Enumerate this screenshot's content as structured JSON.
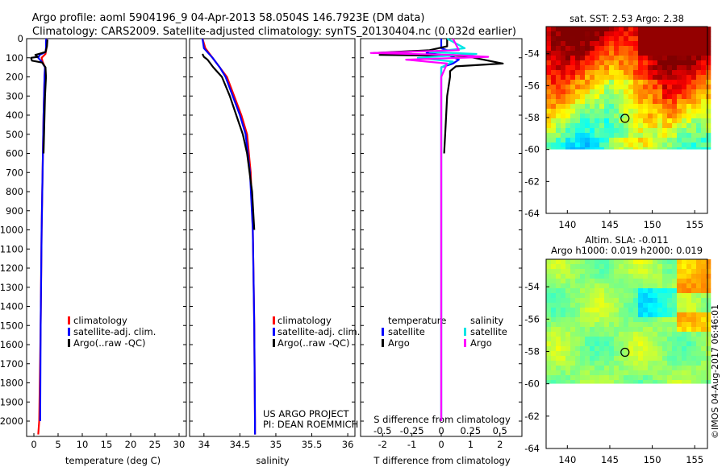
{
  "header": {
    "title_line1": "Argo profile: aoml 5904196_9 04-Apr-2013 58.0504S 146.7923E (DM data)",
    "title_line2": "Climatology: CARS2009. Satellite-adjusted climatology: synTS_20130404.nc (0.032d earlier)"
  },
  "credits": {
    "project": "US ARGO PROJECT",
    "pi": "PI: DEAN ROEMMICH",
    "stamp": "©IMOS 04-Aug-2017 06:46:01"
  },
  "colors": {
    "climatology": "#ff0000",
    "satellite": "#0000ff",
    "argo": "#000000",
    "sal_satellite": "#00e5e5",
    "sal_argo": "#ff00ff",
    "map_land_mask": "#ffffff"
  },
  "chart_data": [
    {
      "type": "line",
      "id": "temperature",
      "xlabel": "temperature (deg C)",
      "ylabel": "",
      "xlim": [
        -1.5,
        31.5
      ],
      "ylim": [
        2080,
        0
      ],
      "xticks": [
        "0",
        "5",
        "10",
        "15",
        "20",
        "25",
        "30"
      ],
      "xtick_values": [
        0,
        5,
        10,
        15,
        20,
        25,
        30
      ],
      "yticks": [
        "0",
        "100",
        "200",
        "300",
        "400",
        "500",
        "600",
        "700",
        "800",
        "900",
        "1000",
        "1100",
        "1200",
        "1300",
        "1400",
        "1500",
        "1600",
        "1700",
        "1800",
        "1900",
        "2000"
      ],
      "ytick_values": [
        0,
        100,
        200,
        300,
        400,
        500,
        600,
        700,
        800,
        900,
        1000,
        1100,
        1200,
        1300,
        1400,
        1500,
        1600,
        1700,
        1800,
        1900,
        2000
      ],
      "legend": [
        "climatology",
        "satellite-adj. clim.",
        "Argo(..raw -QC)"
      ],
      "legend_position": "lower-right",
      "series": [
        {
          "name": "climatology",
          "color": "#ff0000",
          "x": [
            2.6,
            2.6,
            2.4,
            1.6,
            1.8,
            2.3,
            2.2,
            2.0,
            1.8,
            1.6,
            1.4,
            1.1,
            0.9
          ],
          "y": [
            0,
            50,
            80,
            100,
            120,
            150,
            200,
            400,
            700,
            1000,
            1500,
            2000,
            2070
          ]
        },
        {
          "name": "satellite-adj. clim.",
          "color": "#0000ff",
          "x": [
            2.6,
            2.5,
            2.5,
            2.4,
            1.2,
            0.9,
            1.6,
            2.3,
            2.2,
            2.0,
            1.8,
            1.6,
            1.4,
            1.3
          ],
          "y": [
            0,
            10,
            50,
            70,
            85,
            100,
            120,
            150,
            200,
            400,
            700,
            1000,
            1500,
            2000
          ]
        },
        {
          "name": "Argo(..raw -QC)",
          "color": "#000000",
          "x": [
            2.8,
            2.7,
            2.4,
            1.0,
            0.3,
            0.8,
            -0.6,
            -0.4,
            1.7,
            2.4,
            2.5,
            2.3,
            2.2,
            2.0
          ],
          "y": [
            5,
            40,
            70,
            80,
            85,
            95,
            100,
            115,
            125,
            150,
            200,
            300,
            400,
            600
          ]
        }
      ]
    },
    {
      "type": "line",
      "id": "salinity",
      "xlabel": "salinity",
      "ylabel": "",
      "xlim": [
        33.8,
        36.1
      ],
      "ylim": [
        2080,
        0
      ],
      "xticks": [
        "34",
        "34.5",
        "35",
        "35.5",
        "36"
      ],
      "xtick_values": [
        34,
        34.5,
        35,
        35.5,
        36
      ],
      "legend": [
        "climatology",
        "satellite-adj. clim.",
        "Argo(..raw -QC)"
      ],
      "legend_position": "lower-right",
      "series": [
        {
          "name": "climatology",
          "color": "#ff0000",
          "x": [
            33.98,
            34.02,
            34.12,
            34.22,
            34.32,
            34.42,
            34.52,
            34.6,
            34.65,
            34.68,
            34.7,
            34.71,
            34.71
          ],
          "y": [
            0,
            50,
            100,
            150,
            200,
            300,
            400,
            500,
            700,
            1000,
            1500,
            2000,
            2070
          ]
        },
        {
          "name": "satellite-adj. clim.",
          "color": "#0000ff",
          "x": [
            33.98,
            34.0,
            34.12,
            34.22,
            34.3,
            34.4,
            34.5,
            34.58,
            34.64,
            34.68,
            34.7,
            34.71,
            34.71
          ],
          "y": [
            0,
            50,
            100,
            150,
            200,
            300,
            400,
            500,
            700,
            1000,
            1500,
            2000,
            2070
          ]
        },
        {
          "name": "Argo(..raw -QC)",
          "color": "#000000",
          "x": [
            33.98,
            34.0,
            34.05,
            34.13,
            34.25,
            34.36,
            34.45,
            34.54,
            34.6,
            34.67,
            34.7
          ],
          "y": [
            80,
            95,
            110,
            150,
            200,
            300,
            400,
            500,
            600,
            800,
            1000
          ]
        }
      ]
    },
    {
      "type": "line",
      "id": "differences",
      "xlabel": "T difference from climatology",
      "xlabel_top": "S difference from climatology",
      "xlim": [
        -2.75,
        2.75
      ],
      "ylim": [
        2080,
        0
      ],
      "xticks": [
        "-2",
        "-1",
        "0",
        "1",
        "2"
      ],
      "xtick_values": [
        -2,
        -1,
        0,
        1,
        2
      ],
      "xticks_top": [
        "-0.5",
        "-0.25",
        "0",
        "0.25",
        "0.5"
      ],
      "xtick_values_top": [
        -0.5,
        -0.25,
        0,
        0.25,
        0.5
      ],
      "legend_titles": [
        "temperature",
        "salinity"
      ],
      "legend": [
        "satellite",
        "Argo",
        "satellite",
        "Argo"
      ],
      "legend_position": "lower-center",
      "series": [
        {
          "name": "satellite",
          "group": "temperature",
          "color": "#0000ff",
          "x": [
            0,
            0,
            0.2,
            -0.5,
            0.3,
            0.6,
            0.4,
            0,
            0,
            0,
            0,
            0
          ],
          "y": [
            0,
            50,
            60,
            75,
            90,
            110,
            130,
            150,
            400,
            1000,
            1500,
            2000
          ]
        },
        {
          "name": "Argo",
          "group": "temperature",
          "color": "#000000",
          "x": [
            0.2,
            0.2,
            -0.4,
            -2.3,
            -1.0,
            -2.1,
            0.8,
            2.1,
            0.5,
            0.3,
            0.3,
            0.2,
            0.15,
            0.1
          ],
          "y": [
            0,
            40,
            60,
            75,
            80,
            85,
            90,
            130,
            145,
            170,
            200,
            300,
            450,
            600
          ]
        },
        {
          "name": "satellite",
          "group": "salinity",
          "color": "#00e5e5",
          "x": [
            0.05,
            0.2,
            0.05,
            -0.1,
            0.3,
            -0.2,
            0.1,
            0,
            0,
            0,
            0,
            0
          ],
          "y": [
            0,
            50,
            60,
            70,
            80,
            100,
            120,
            150,
            400,
            1000,
            1500,
            2000
          ]
        },
        {
          "name": "Argo",
          "group": "salinity",
          "color": "#ff00ff",
          "x": [
            0.1,
            0.15,
            -0.6,
            0.1,
            0.4,
            -0.3,
            0.05,
            0,
            0,
            0,
            0,
            0
          ],
          "y": [
            0,
            60,
            75,
            85,
            95,
            110,
            130,
            200,
            400,
            1000,
            1500,
            2000
          ]
        }
      ]
    },
    {
      "type": "heatmap",
      "id": "sst_map",
      "title": "sat. SST: 2.53 Argo: 2.38",
      "xlim": [
        137.5,
        156.5
      ],
      "ylim": [
        -64,
        -52.3
      ],
      "xticks": [
        "140",
        "145",
        "150",
        "155"
      ],
      "xtick_values": [
        140,
        145,
        150,
        155
      ],
      "yticks": [
        "-54",
        "-56",
        "-58",
        "-60",
        "-62",
        "-64"
      ],
      "ytick_values": [
        -54,
        -56,
        -58,
        -60,
        -62,
        -64
      ],
      "data_south_limit": -60,
      "argo_position": [
        146.79,
        -58.05
      ],
      "colormap": "jet"
    },
    {
      "type": "heatmap",
      "id": "sla_map",
      "title": "Altim. SLA: -0.011",
      "subtitle": "Argo h1000: 0.019 h2000: 0.019",
      "xlim": [
        137.5,
        156.5
      ],
      "ylim": [
        -64,
        -52.3
      ],
      "xticks": [
        "140",
        "145",
        "150",
        "155"
      ],
      "xtick_values": [
        140,
        145,
        150,
        155
      ],
      "yticks": [
        "-54",
        "-56",
        "-58",
        "-60",
        "-62",
        "-64"
      ],
      "ytick_values": [
        -54,
        -56,
        -58,
        -60,
        -62,
        -64
      ],
      "data_south_limit": -60,
      "argo_position": [
        146.79,
        -58.05
      ],
      "colormap": "jet"
    }
  ]
}
